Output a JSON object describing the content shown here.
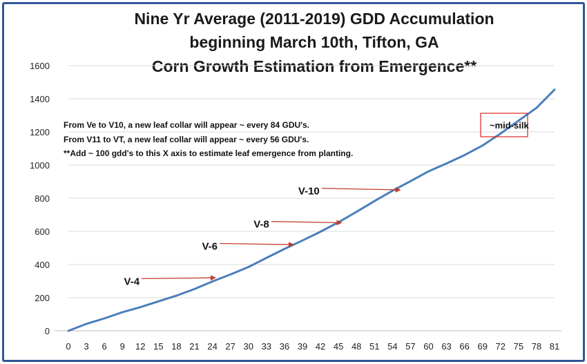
{
  "chart_data": {
    "type": "line",
    "title": [
      "Nine Yr Average (2011-2019) GDD Accumulation",
      "beginning March 10th, Tifton, GA",
      "Corn Growth Estimation from Emergence**"
    ],
    "xlabel": "",
    "ylabel": "",
    "xlim": [
      0,
      81
    ],
    "ylim": [
      0,
      1600
    ],
    "x_ticks": [
      0,
      3,
      6,
      9,
      12,
      15,
      18,
      21,
      24,
      27,
      30,
      33,
      36,
      39,
      42,
      45,
      48,
      51,
      54,
      57,
      60,
      63,
      66,
      69,
      72,
      75,
      78,
      81
    ],
    "y_ticks": [
      0,
      200,
      400,
      600,
      800,
      1000,
      1200,
      1400,
      1600
    ],
    "grid": "horizontal",
    "legend": "none",
    "line_color": "#4a7ebb",
    "x": [
      0,
      3,
      6,
      9,
      12,
      15,
      18,
      21,
      24,
      27,
      30,
      33,
      36,
      39,
      42,
      45,
      48,
      51,
      54,
      57,
      60,
      63,
      66,
      69,
      72,
      75,
      78,
      81
    ],
    "series": [
      {
        "values": [
          0,
          42,
          75,
          112,
          143,
          178,
          212,
          252,
          298,
          340,
          385,
          440,
          494,
          545,
          598,
          655,
          718,
          783,
          845,
          903,
          962,
          1010,
          1060,
          1118,
          1190,
          1268,
          1345,
          1455
        ]
      }
    ],
    "notes": [
      "From Ve to V10,  a new leaf collar will appear ~ every 84 GDU's.",
      "From V11 to VT, a new leaf collar will appear ~ every 56 GDU's.",
      "**Add ~ 100 gdd's to this X axis to estimate leaf emergence from planting."
    ],
    "annotations": [
      {
        "label": "V-4",
        "arrow_from": [
          12.2,
          315
        ],
        "arrow_to": [
          24.5,
          320
        ],
        "arrow_color": "#c0392b"
      },
      {
        "label": "V-6",
        "arrow_from": [
          25.2,
          527
        ],
        "arrow_to": [
          37.5,
          520
        ],
        "arrow_color": "#c0392b"
      },
      {
        "label": "V-8",
        "arrow_from": [
          33.8,
          660
        ],
        "arrow_to": [
          45.5,
          652
        ],
        "arrow_color": "#c0392b"
      },
      {
        "label": "V-10",
        "arrow_from": [
          42.2,
          860
        ],
        "arrow_to": [
          55.3,
          850
        ],
        "arrow_color": "#c0392b"
      }
    ],
    "callout": {
      "label": "~mid-silk",
      "border_color": "#e02020"
    }
  }
}
